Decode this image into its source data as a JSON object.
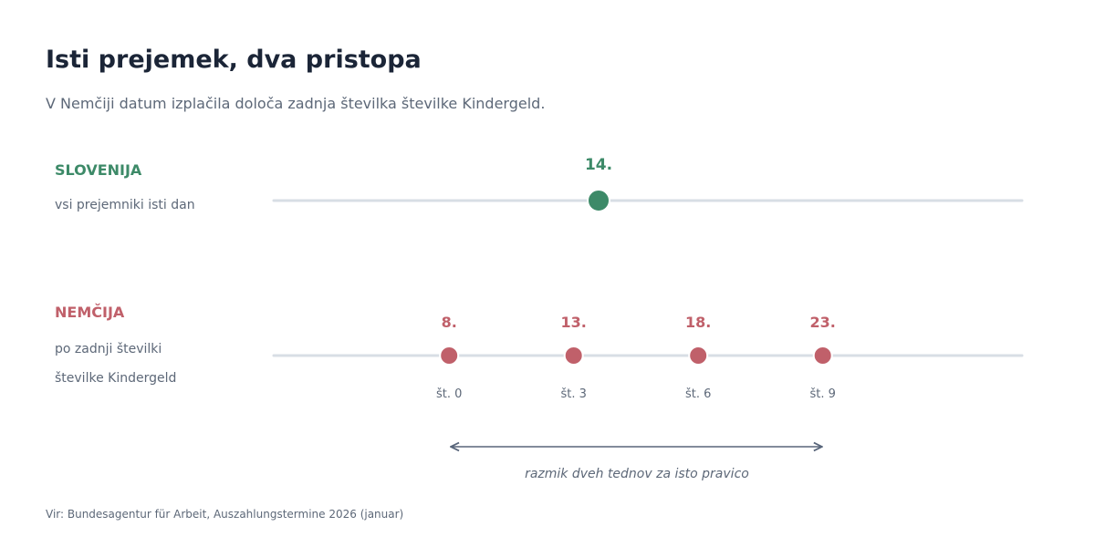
{
  "header": {
    "title": "Isti prejemek, dva pristopa",
    "subtitle": "V Nemčiji datum izplačila določa zadnja številka številke Kindergeld."
  },
  "rows": {
    "slovenia": {
      "name": "SLOVENIJA",
      "description": "vsi prejemniki isti dan",
      "color": "#3d8a68",
      "points": [
        {
          "day": 14,
          "label": "14."
        }
      ]
    },
    "germany": {
      "name": "NEMČIJA",
      "description_line1": "po zadnji številki",
      "description_line2": "številke Kindergeld",
      "color": "#c0606a",
      "points": [
        {
          "day": 8,
          "label": "8.",
          "sublabel": "št. 0"
        },
        {
          "day": 13,
          "label": "13.",
          "sublabel": "št. 3"
        },
        {
          "day": 18,
          "label": "18.",
          "sublabel": "št. 6"
        },
        {
          "day": 23,
          "label": "23.",
          "sublabel": "št. 9"
        }
      ]
    }
  },
  "annotation": {
    "text": "razmik dveh tednov za isto pravico",
    "from_day": 8,
    "to_day": 23
  },
  "axis": {
    "day_min": 1,
    "day_max": 31,
    "track_color": "#d8dee5"
  },
  "footer": {
    "source": "Vir: Bundesagentur für Arbeit, Auszahlungstermine 2026 (januar)"
  }
}
